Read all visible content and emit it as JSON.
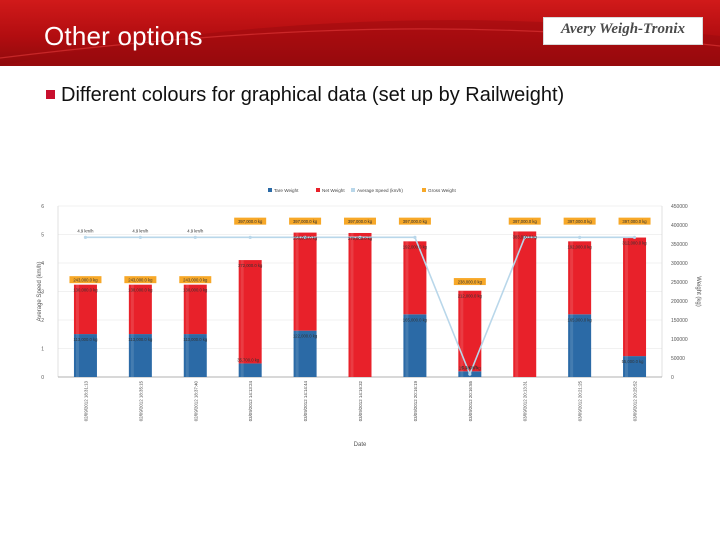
{
  "slide": {
    "title": "Other options",
    "logo": "Avery Weigh-Tronix",
    "bullet": "Different colours for graphical data (set up by Railweight)"
  },
  "colors": {
    "tare": "#2b6aa6",
    "net": "#e8212a",
    "speed": "#b9d7ea",
    "gross": "#f7a828",
    "header_red": "#c8102e"
  },
  "chart_data": {
    "type": "bar",
    "xlabel": "Date",
    "ylabel": "Average Speed (km/h)",
    "y2label": "Weight (kg)",
    "ylim": [
      0,
      6
    ],
    "y_ticks": [
      "0",
      "1",
      "2",
      "3",
      "4",
      "5",
      "6"
    ],
    "y2lim": [
      0,
      450000
    ],
    "y2_ticks": [
      "0",
      "50000",
      "100000",
      "150000",
      "200000",
      "250000",
      "300000",
      "350000",
      "400000",
      "450000"
    ],
    "legend_position": "top-center",
    "categories": [
      "02/09/2012 18:31:13",
      "02/09/2012 18:35:15",
      "02/09/2012 18:37:40",
      "03/09/2012 14:13:24",
      "03/09/2012 14:14:44",
      "03/09/2012 14:16:32",
      "03/09/2012 20:16:19",
      "03/09/2012 20:16:55",
      "03/09/2012 20:13:31",
      "03/09/2012 20:21:25",
      "03/09/2012 20:25:52"
    ],
    "series": [
      {
        "name": "Tare Weight",
        "type": "bar",
        "values": [
          113000,
          113000,
          113000,
          35700,
          122000,
          0,
          165000,
          15000,
          0,
          165000,
          55000
        ],
        "labels": [
          "113,000.0 kg",
          "113,000.0 kg",
          "113,000.0 kg",
          "35,700.0 kg",
          "122,000.0 kg",
          "",
          "165,000.0 kg",
          "15,000.0 kg",
          "",
          "165,000.0 kg",
          "55,000.0 kg"
        ]
      },
      {
        "name": "Net Weight",
        "type": "bar",
        "values": [
          130000,
          130000,
          130000,
          272000,
          258000,
          379000,
          192000,
          212000,
          383000,
          192000,
          312000
        ],
        "labels": [
          "130,000.0 kg",
          "130,000.0 kg",
          "130,000.0 kg",
          "272,000.0 kg",
          "258,000.0 kg",
          "379,000.0 kg",
          "192,000.0 kg",
          "212,000.0 kg",
          "383,000.0 kg",
          "192,000.0 kg",
          "312,000.0 kg"
        ]
      },
      {
        "name": "Average Speed (km/h)",
        "type": "line",
        "values": [
          4.9,
          4.9,
          4.9,
          4.9,
          4.9,
          4.9,
          4.9,
          0.1,
          4.9,
          4.9,
          4.9
        ],
        "labels": [
          "4.9 km/h",
          "4.9 km/h",
          "4.9 km/h",
          "",
          "",
          "",
          "",
          "0.1 km/h",
          "",
          "",
          ""
        ]
      },
      {
        "name": "Gross Weight",
        "type": "label",
        "values": [
          243000,
          243000,
          243000,
          397000,
          397000,
          397000,
          397000,
          238000,
          397000,
          397000,
          397000
        ],
        "labels": [
          "243,000.0 kg",
          "243,000.0 kg",
          "243,000.0 kg",
          "397,000.0 kg",
          "397,000.0 kg",
          "397,000.0 kg",
          "397,000.0 kg",
          "238,000.0 kg",
          "397,000.0 kg",
          "397,000.0 kg",
          "397,000.0 kg"
        ]
      }
    ]
  }
}
